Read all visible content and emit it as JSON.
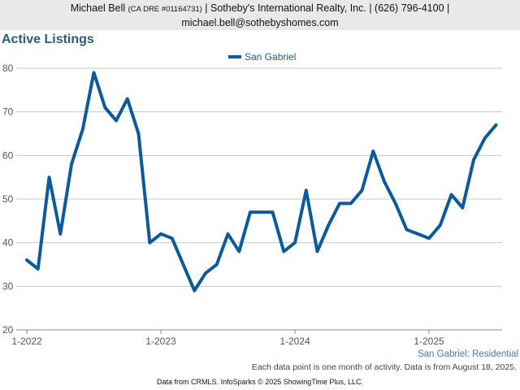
{
  "header": {
    "agent_name": "Michael Bell",
    "dre": "(CA DRE #01164731)",
    "company": "| Sotheby's International Realty, Inc. | (626) 796-4100 |",
    "email": "michael.bell@sothebyshomes.com"
  },
  "chart_data": {
    "type": "line",
    "title": "Active Listings",
    "xlabel": "",
    "ylabel": "",
    "ylim": [
      20,
      80
    ],
    "yticks": [
      20,
      30,
      40,
      50,
      60,
      70,
      80
    ],
    "xticks": [
      "1-2022",
      "1-2023",
      "1-2024",
      "1-2025"
    ],
    "x_start": "2022-01",
    "grid": true,
    "legend": "top-center",
    "series": [
      {
        "name": "San Gabriel",
        "color": "#0b5a9c",
        "values": [
          36,
          34,
          55,
          42,
          58,
          66,
          79,
          71,
          68,
          73,
          65,
          40,
          42,
          41,
          35,
          29,
          33,
          35,
          42,
          38,
          47,
          47,
          47,
          38,
          40,
          52,
          38,
          44,
          49,
          49,
          52,
          61,
          54,
          49,
          43,
          42,
          41,
          44,
          51,
          48,
          59,
          64,
          67
        ]
      }
    ]
  },
  "footer": {
    "series_label": "San Gabriel: Residential",
    "note": "Each data point is one month of activity. Data is from August 18, 2025.",
    "source": "Data from CRMLS. InfoSparks © 2025 ShowingTime Plus, LLC."
  }
}
